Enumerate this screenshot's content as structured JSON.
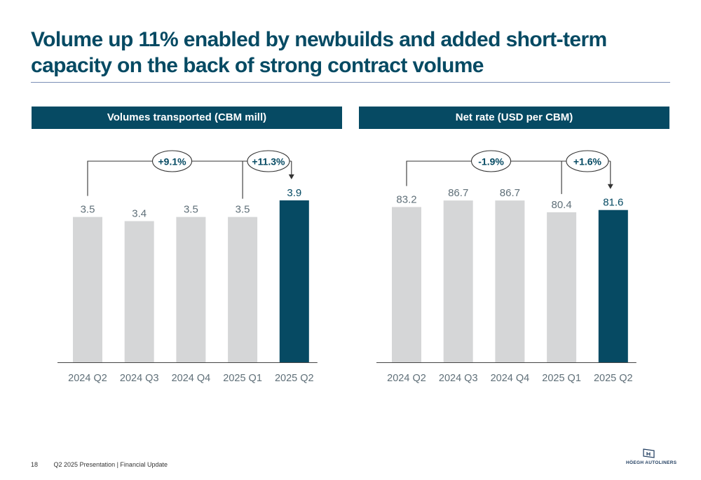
{
  "slide": {
    "title": "Volume up 11% enabled by newbuilds and added short-term capacity on the back of strong contract volume"
  },
  "colors": {
    "highlight_bar": "#064a63",
    "base_bar": "#d5d6d7",
    "header_bg": "#064a63",
    "title": "#064a63"
  },
  "chart_data": [
    {
      "type": "bar",
      "title": "Volumes transported (CBM mill)",
      "categories": [
        "2024 Q2",
        "2024 Q3",
        "2024 Q4",
        "2025 Q1",
        "2025 Q2"
      ],
      "values": [
        3.5,
        3.4,
        3.5,
        3.5,
        3.9
      ],
      "value_labels": [
        "3.5",
        "3.4",
        "3.5",
        "3.5",
        "3.9"
      ],
      "highlight_index": 4,
      "ylim": [
        0,
        4.0
      ],
      "grid": false,
      "annotations": [
        {
          "label": "+9.1%",
          "from": "2024 Q2",
          "to": "2025 Q2"
        },
        {
          "label": "+11.3%",
          "from": "2025 Q1",
          "to": "2025 Q2"
        }
      ]
    },
    {
      "type": "bar",
      "title": "Net rate (USD per CBM)",
      "categories": [
        "2024 Q2",
        "2024 Q3",
        "2024 Q4",
        "2025 Q1",
        "2025 Q2"
      ],
      "values": [
        83.2,
        86.7,
        86.7,
        80.4,
        81.6
      ],
      "value_labels": [
        "83.2",
        "86.7",
        "86.7",
        "80.4",
        "81.6"
      ],
      "highlight_index": 4,
      "ylim": [
        0,
        89.0
      ],
      "grid": false,
      "annotations": [
        {
          "label": "-1.9%",
          "from": "2024 Q2",
          "to": "2025 Q2"
        },
        {
          "label": "+1.6%",
          "from": "2025 Q1",
          "to": "2025 Q2"
        }
      ]
    }
  ],
  "footer": {
    "page_number": "18",
    "text": "Q2 2025 Presentation | Financial Update"
  },
  "logo": {
    "text": "HÖEGH AUTOLINERS",
    "icon": "hoegh-flag-icon"
  }
}
